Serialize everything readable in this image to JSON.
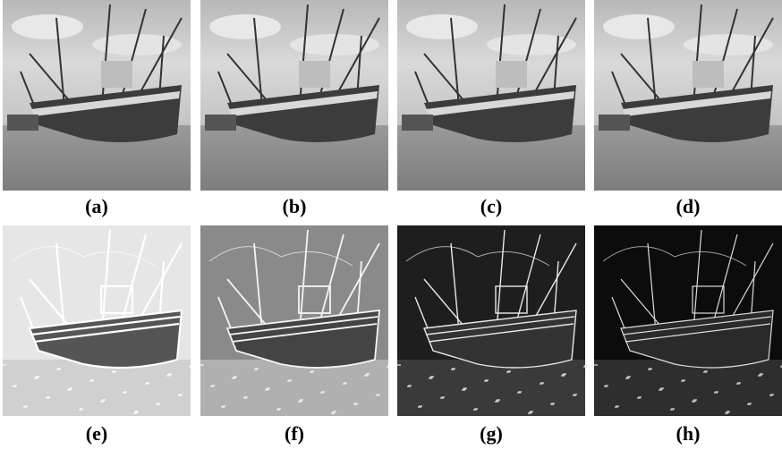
{
  "figure": {
    "labels": [
      "(a)",
      "(b)",
      "(c)",
      "(d)",
      "(e)",
      "(f)",
      "(g)",
      "(h)"
    ]
  }
}
